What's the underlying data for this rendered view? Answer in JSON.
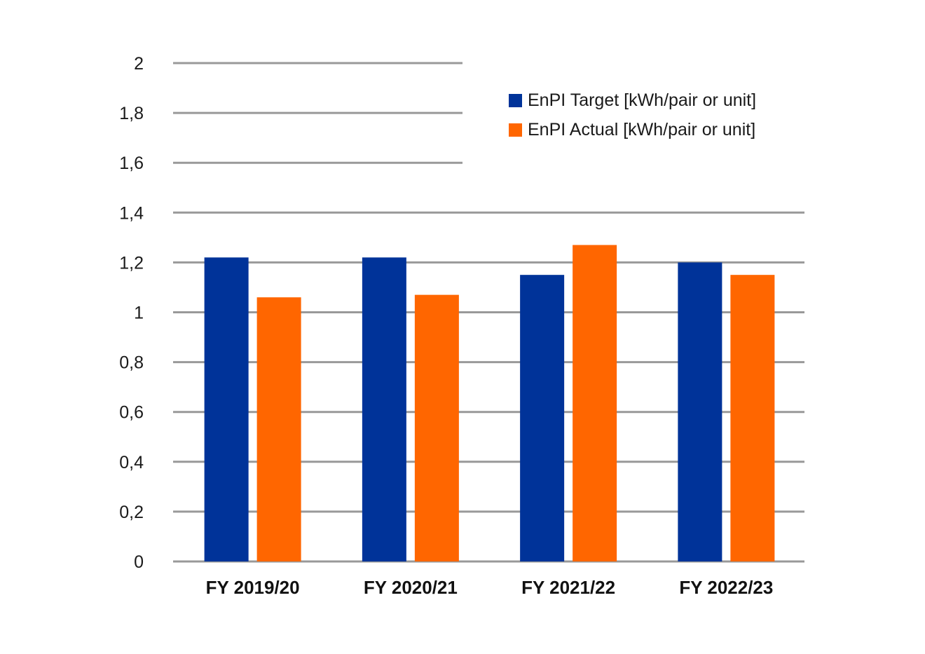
{
  "chart_data": {
    "type": "bar",
    "categories": [
      "FY 2019/20",
      "FY 2020/21",
      "FY 2021/22",
      "FY 2022/23"
    ],
    "series": [
      {
        "name": "EnPI Target [kWh/pair or unit]",
        "color": "#003399",
        "values": [
          1.22,
          1.22,
          1.15,
          1.2
        ]
      },
      {
        "name": "EnPI Actual [kWh/pair or unit]",
        "color": "#ff6600",
        "values": [
          1.06,
          1.07,
          1.27,
          1.15
        ]
      }
    ],
    "ylim": [
      0,
      2
    ],
    "yticks": [
      "0",
      "0,2",
      "0,4",
      "0,6",
      "0,8",
      "1",
      "1,2",
      "1,4",
      "1,6",
      "1,8",
      "2"
    ],
    "grid": true,
    "legend_position": "top-right",
    "gridline_color": "#999999"
  }
}
